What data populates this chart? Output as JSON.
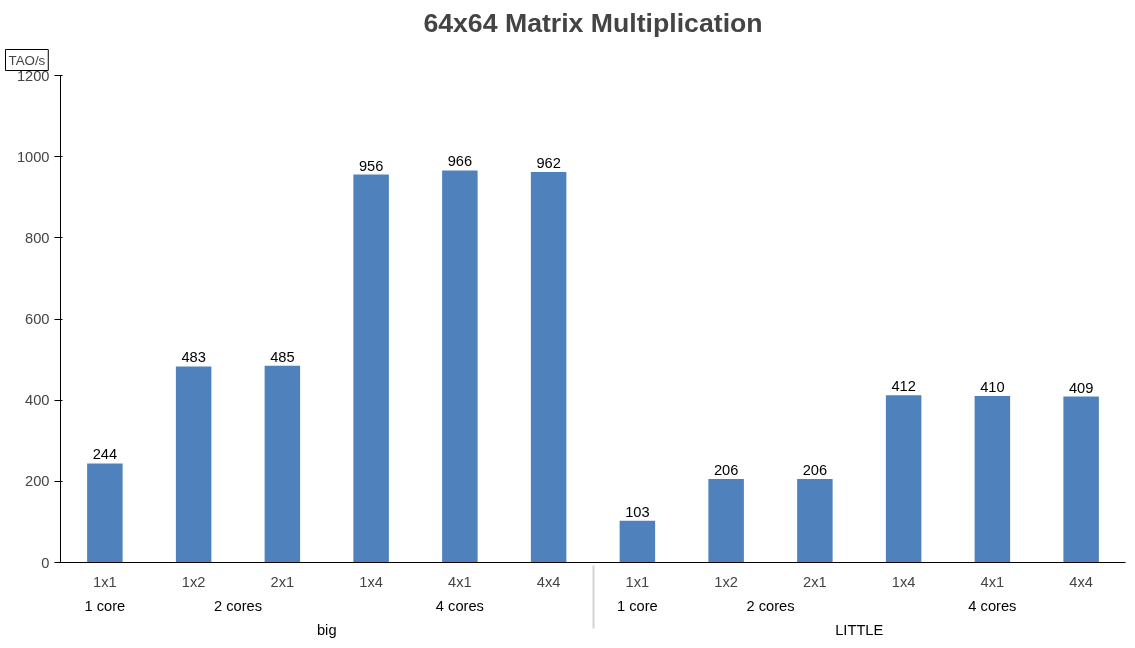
{
  "chart_data": {
    "type": "bar",
    "title": "64x64 Matrix Multiplication",
    "ylabel": "TAO/s",
    "categories": [
      "1x1",
      "1x2",
      "2x1",
      "1x4",
      "4x1",
      "4x4",
      "1x1",
      "1x2",
      "2x1",
      "1x4",
      "4x1",
      "4x4"
    ],
    "values": [
      244,
      483,
      485,
      956,
      966,
      962,
      103,
      206,
      206,
      412,
      410,
      409
    ],
    "color": "#4f81bd",
    "ylim": [
      0,
      1200
    ],
    "yticks": [
      0,
      200,
      400,
      600,
      800,
      1000,
      1200
    ],
    "data_labels": true,
    "grid": false,
    "annotations": [
      "1 core",
      "2 cores",
      "4 cores",
      "1 core",
      "2 cores",
      "4 cores",
      "big",
      "LITTLE"
    ]
  }
}
